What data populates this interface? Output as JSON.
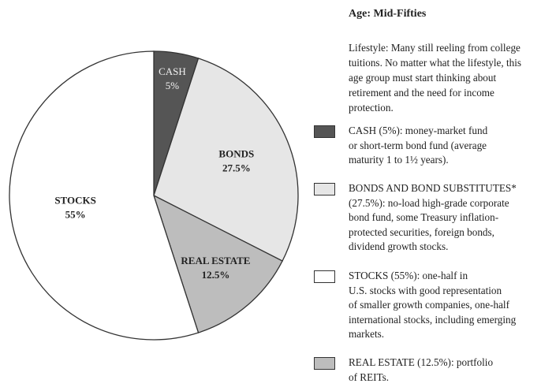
{
  "chart_data": {
    "type": "pie",
    "title": "",
    "slices": [
      {
        "label": "CASH",
        "value": 5,
        "value_label": "5%",
        "color": "#555555"
      },
      {
        "label": "BONDS",
        "value": 27.5,
        "value_label": "27.5%",
        "color": "#e6e6e6"
      },
      {
        "label": "REAL ESTATE",
        "value": 12.5,
        "value_label": "12.5%",
        "color": "#bdbdbd"
      },
      {
        "label": "STOCKS",
        "value": 55,
        "value_label": "55%",
        "color": "#ffffff"
      }
    ]
  },
  "heading": "Age: Mid-Fifties",
  "lifestyle": "Lifestyle: Many still reeling from college tuitions. No matter what the lifestyle, this age group must start thinking about retirement and the need for income protection.",
  "legend": [
    {
      "name": "cash",
      "color": "#555555",
      "text": "CASH (5%): money-market fund\nor short-term bond fund (average\nmaturity 1 to 1½ years)."
    },
    {
      "name": "bonds",
      "color": "#e6e6e6",
      "text": "BONDS AND BOND SUBSTITUTES*\n(27.5%): no-load high-grade corporate\nbond fund, some Treasury inflation-\nprotected securities, foreign bonds,\ndividend growth stocks."
    },
    {
      "name": "stocks",
      "color": "#ffffff",
      "text": "STOCKS (55%): one-half in\nU.S. stocks with good representation\nof smaller growth companies, one-half\ninternational stocks, including emerging\nmarkets."
    },
    {
      "name": "real-estate",
      "color": "#bdbdbd",
      "text": "REAL ESTATE (12.5%): portfolio\nof REITs."
    }
  ]
}
